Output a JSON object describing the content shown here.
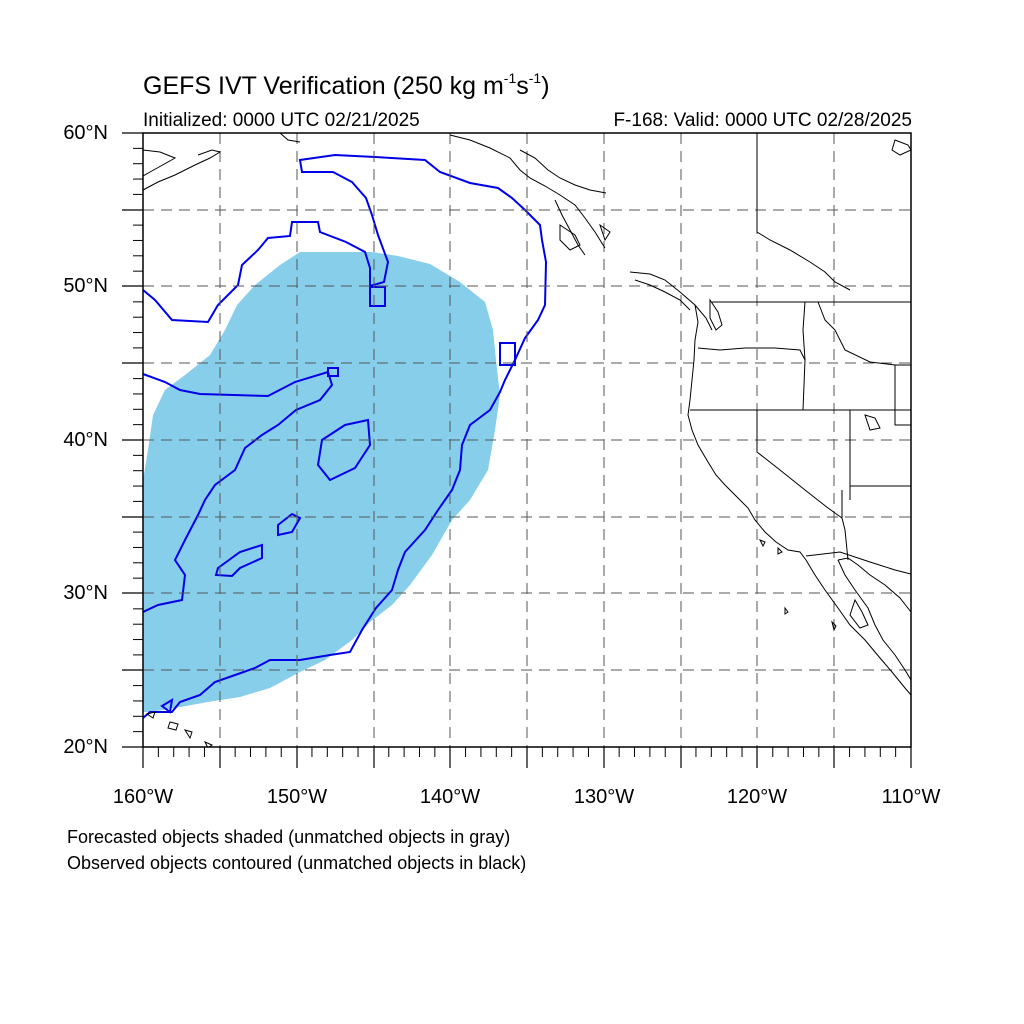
{
  "title": {
    "main": "GEFS IVT Verification (250 kg m",
    "exp1": "-1",
    "mid": "s",
    "exp2": "-1",
    "end": ")"
  },
  "subtitle_left": "Initialized: 0000 UTC 02/21/2025",
  "subtitle_right": "F-168: Valid: 0000 UTC 02/28/2025",
  "lat_labels": [
    "60°N",
    "50°N",
    "40°N",
    "30°N",
    "20°N"
  ],
  "lon_labels": [
    "160°W",
    "150°W",
    "140°W",
    "130°W",
    "120°W",
    "110°W"
  ],
  "caption_line1": "Forecasted objects shaded (unmatched objects in gray)",
  "caption_line2": "Observed objects contoured (unmatched objects in black)",
  "colors": {
    "forecast_fill": "#87ceeb",
    "observed_contour": "#0000e6",
    "coastline": "#000000",
    "grid": "#555555"
  },
  "map": {
    "projection": "cylindrical equidistant",
    "lon_range": [
      -160,
      -110
    ],
    "lat_range": [
      20,
      60
    ],
    "grid": true
  }
}
